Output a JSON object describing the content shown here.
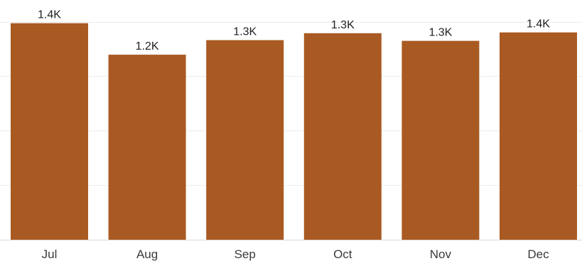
{
  "chart_data": {
    "type": "bar",
    "categories": [
      "Jul",
      "Aug",
      "Sep",
      "Oct",
      "Nov",
      "Dec"
    ],
    "values": [
      1410,
      1205,
      1300,
      1345,
      1295,
      1350
    ],
    "data_labels": [
      "1.4K",
      "1.2K",
      "1.3K",
      "1.3K",
      "1.3K",
      "1.4K"
    ],
    "ylim": [
      0,
      1500
    ],
    "grid": true,
    "bar_color": "#a95a22",
    "grid_color": "#ececec",
    "title": "",
    "xlabel": "",
    "ylabel": ""
  }
}
